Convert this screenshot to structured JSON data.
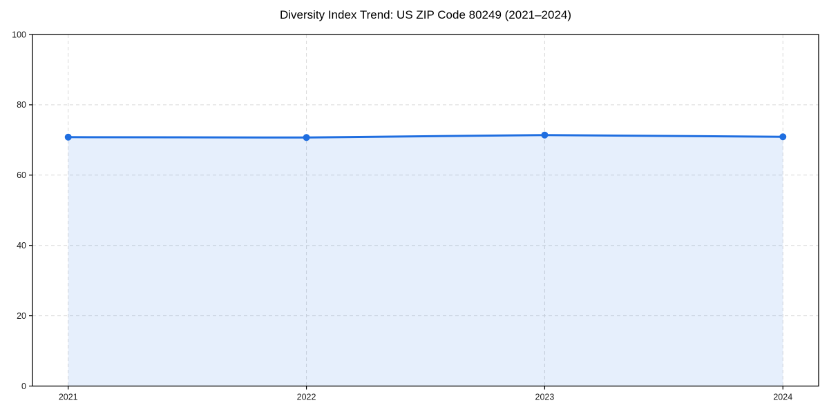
{
  "figure": {
    "background": "#ffffff"
  },
  "chart_data": {
    "type": "line",
    "title": "Diversity Index Trend: US ZIP Code 80249 (2021–2024)",
    "categories": [
      "2021",
      "2022",
      "2023",
      "2024"
    ],
    "series": [
      {
        "name": "Diversity Index",
        "values": [
          70.8,
          70.7,
          71.4,
          70.9
        ]
      }
    ],
    "xlabel": "",
    "ylabel": "",
    "ylim": [
      0,
      100
    ],
    "yticks": [
      0,
      20,
      40,
      60,
      80,
      100
    ],
    "grid": true,
    "grid_style": "dashed",
    "legend_position": "none",
    "marker": "circle",
    "area_fill": true,
    "colors": {
      "line": "#1f6ee0",
      "marker": "#1f6ee0",
      "area_fill": "rgba(31,110,224,0.11)",
      "grid": "#d9d9d9",
      "axis": "#000000",
      "tick_label": "#1a1a1a",
      "title": "#000000",
      "plot_background": "#ffffff"
    }
  }
}
